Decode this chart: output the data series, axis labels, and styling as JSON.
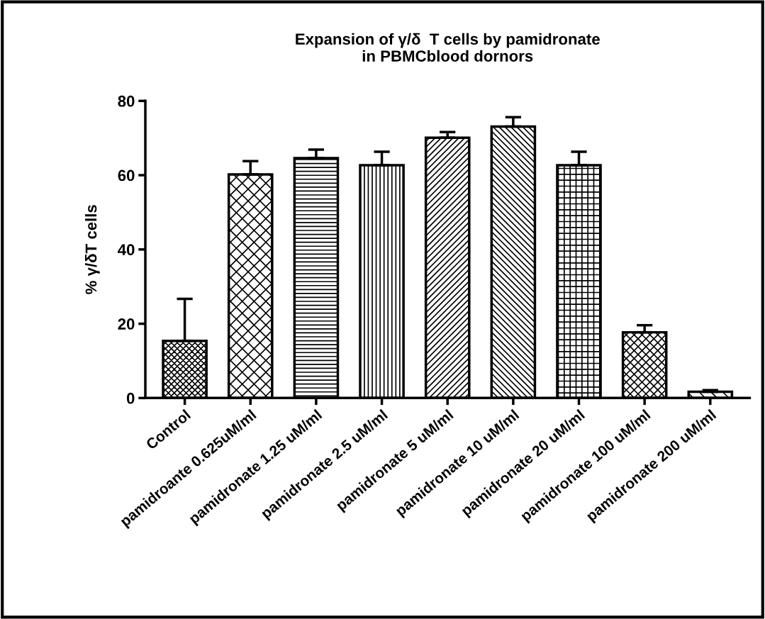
{
  "chart_data": {
    "type": "bar",
    "title": "Expansion of γ/δ  T cells by pamidronate\nin PBMCblood dornors",
    "ylabel": "% γ/δT cells",
    "categories": [
      "Control",
      "pamidroante 0.625uM/ml",
      "pamidronate 1.25 uM/ml",
      "pamidronate 2.5 uM/ml",
      "pamidronate 5 uM/ml",
      "pamidronate 10 uM/ml",
      "pamidronate 20 uM/ml",
      "pamidronate 100 uM/ml",
      "pamidronate 200 uM/ml"
    ],
    "values": [
      15.4,
      60.2,
      64.6,
      62.7,
      70.1,
      73.1,
      62.7,
      17.7,
      1.7
    ],
    "errors": [
      [
        15.4,
        26.7
      ],
      [
        60.2,
        63.8
      ],
      [
        64.6,
        66.9
      ],
      [
        62.7,
        66.3
      ],
      [
        70.1,
        71.6
      ],
      [
        73.1,
        75.6
      ],
      [
        62.7,
        66.3
      ],
      [
        17.7,
        19.6
      ],
      [
        1.7,
        2.1
      ]
    ],
    "color": "#000000",
    "ylim": [
      0,
      80
    ],
    "yticks": [
      0,
      20,
      40,
      60,
      80
    ],
    "grid": false,
    "legend": false
  }
}
